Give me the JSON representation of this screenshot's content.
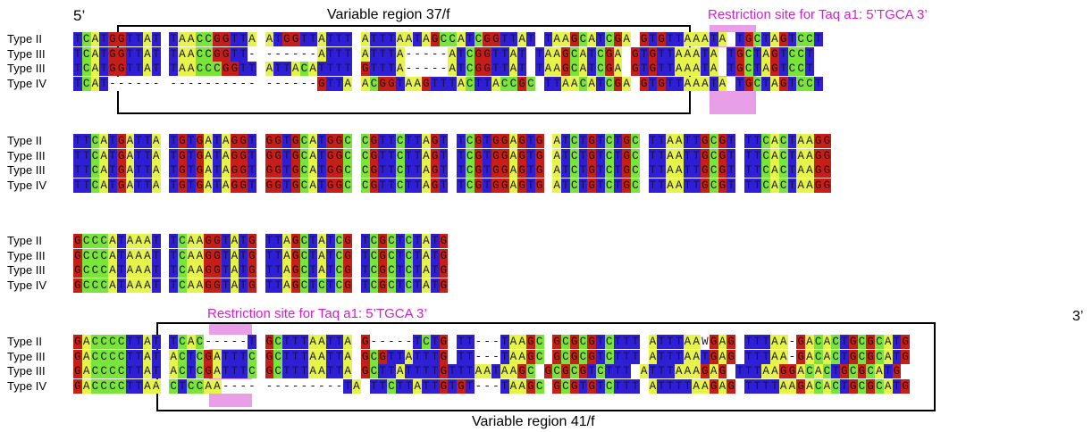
{
  "labels": {
    "five_prime": "5’",
    "three_prime": "3’",
    "variable_region_1": "Variable  region 37/f",
    "variable_region_2": "Variable  region 41/f",
    "restriction_site_1": "Restriction site for Taq a1: 5’TGCA 3’",
    "restriction_site_2": "Restriction site for Taq a1: 5’TGCA 3’"
  },
  "colors": {
    "A": "#e6f34a",
    "T": "#2e1fd6",
    "G": "#c61f1a",
    "C": "#79e43a",
    "highlight": "#d650d6"
  },
  "blocks": [
    {
      "rows": [
        {
          "name": "Type II",
          "seq": "TCATGGTTAT TAACCGGTTA ATGGTTATTT ATTTAATAGCCATCGGTTAT TAAGCATCGA GTGTTAAATA TGCTAGTCCT"
        },
        {
          "name": "Type III",
          "seq": "TCATGGTTAT TAACCGGTT- ------ATTT ATTTA-----ATCGGTTAT TAAGCATCGA GTGTTAAATA TGCTAGTCCT"
        },
        {
          "name": "Type III",
          "seq": "TCATGGTTAT TAACCCGGTT ATTACATTTT GTTTA-----ATCGGTTAT TAAGCATCGA GTGTTAAATA TGCTAGTCCT"
        },
        {
          "name": "Type IV",
          "seq": "TCAT------ ---------- ------GTTA ACGGTAAGTTTACTTACCGC TTAACATCGA GTGTTAAATA TGCTAGTCCT"
        }
      ]
    },
    {
      "rows": [
        {
          "name": "Type II",
          "seq": "TTCATGATTA TGTGATAGGT GGTGCATGGC CGTTCTTAGT TCGTGGAGTG ATCTGTCTGC TTAATTGCGT TTCACTAAGG"
        },
        {
          "name": "Type III",
          "seq": "TTCATGATTA TGTGATAGGT GGTGCATGGC CGTTCTTAGT TCGTGGAGTG ATCTGTCTGC TTAATTGCGT TTCACTAAGG"
        },
        {
          "name": "Type III",
          "seq": "TTCATGATTA TGTGATAGGT GGTGCATGGC CGTTCTTAGT TCGTGGAGTG ATCTGTCTGC TTAATTGCGT TTCACTAAGG"
        },
        {
          "name": "Type IV",
          "seq": "TTCATGATTA TGTGATAGGT GGTGCATGGC CGTTCTTAGT TCGTGGAGTG ATCTGTCTGC TTAATTGCGT TTCACTAAGG"
        }
      ]
    },
    {
      "rows": [
        {
          "name": "Type II",
          "seq": "GCCCATAAAT TCAAGGTATG TTAGCTATCG TCGCTCTATG"
        },
        {
          "name": "Type III",
          "seq": "GCCCATAAAT TCAAGGTATG TTAGCTATCG TCGCTCTATG"
        },
        {
          "name": "Type III",
          "seq": "GCCCATAAAT TCAAGGTATG TTAGCTATCG TCGCTCTATG"
        },
        {
          "name": "Type IV",
          "seq": "GCCCATAAAT TCAAGGTATG TTAGCTCTCG TCGCTCTATG"
        }
      ]
    },
    {
      "rows": [
        {
          "name": "Type II",
          "seq": "GACCCCTTAT TCAC-----T GCTTTAATTA G-----TCTG TT---TAAGC GCGCGTCTTT ATTTAAWGAG TTTAA-GACACTGCGCATG"
        },
        {
          "name": "Type III",
          "seq": "GACCCCTTAT ACTCGATTTC GCTTTAATTA GCGTTATTTG TT---TAAGC GCGCGTCTTT ATTTAATGAG TTTAA-GACACTGCGCATG"
        },
        {
          "name": "Type III",
          "seq": "GACCCCTTAT ACTCGATTTC GCTTTAATTA GCTTATTTTGTTTAATAAGC GCGCGTCTTT ATTTAAAGAG TTTAAGGACACTGCGCATG"
        },
        {
          "name": "Type IV",
          "seq": "GACCCCTTAA CTCCAA---- ---------TA TTCTTATTGTGT---TAAGC GCGTGTCTTT ATTTTAAGAG TTTTAAGACACTGCGCATG"
        }
      ]
    }
  ]
}
